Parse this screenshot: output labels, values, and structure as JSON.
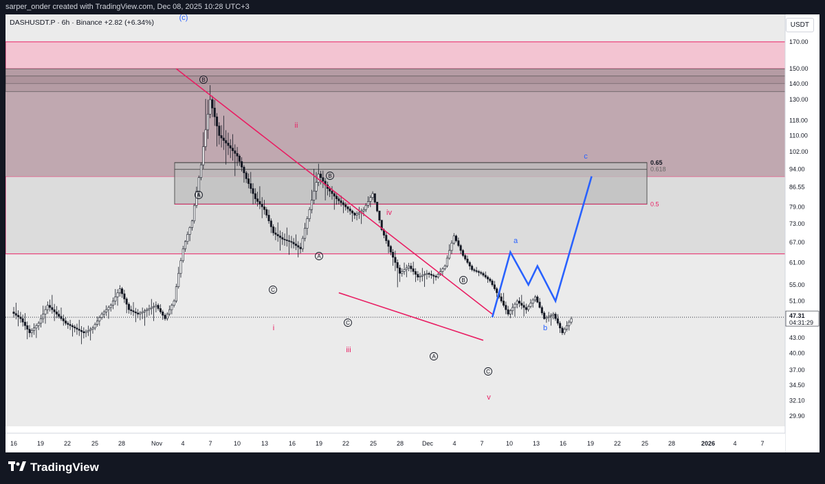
{
  "header": {
    "text": "sarper_onder created with TradingView.com, Dec 08, 2025 10:28 UTC+3"
  },
  "legend": {
    "symbol": "DASHUSDT.P",
    "interval": "6h",
    "exchange": "Binance",
    "change": "+2.82 (+6.34%)"
  },
  "unit": "USDT",
  "footer": {
    "brand": "TradingView",
    "logo": "tv-logo-icon"
  },
  "colors": {
    "bg": "#131722",
    "panel": "#ffffff",
    "candle": "#131722",
    "pink": "#e91e63",
    "blue": "#2962ff",
    "zone_pink": "#f3c4d2",
    "zone_dark": "#a08088"
  },
  "chart_data": {
    "type": "candlestick",
    "symbol": "DASHUSDT.P",
    "y_scale": "log",
    "ylim": [
      28.5,
      180
    ],
    "y_ticks": [
      "170.00",
      "150.00",
      "140.00",
      "130.00",
      "118.00",
      "110.00",
      "102.00",
      "94.00",
      "86.55",
      "79.00",
      "73.00",
      "67.00",
      "61.00",
      "55.00",
      "51.00",
      "47.31",
      "43.00",
      "40.00",
      "37.00",
      "34.50",
      "32.10",
      "29.90"
    ],
    "x_ticks": [
      "16",
      "19",
      "22",
      "25",
      "28",
      "Nov",
      "4",
      "7",
      "10",
      "13",
      "16",
      "19",
      "22",
      "25",
      "28",
      "Dec",
      "4",
      "7",
      "10",
      "13",
      "16",
      "19",
      "22",
      "25",
      "28",
      "2026",
      "4",
      "7"
    ],
    "last_price": "47.31",
    "countdown": "04:31:29",
    "candles_daily_ohlc": [
      [
        48.5,
        51,
        45,
        47
      ],
      [
        47,
        49,
        42,
        44
      ],
      [
        44,
        47,
        42,
        46
      ],
      [
        46,
        52,
        44,
        50
      ],
      [
        50,
        53,
        46,
        48
      ],
      [
        48,
        50,
        45,
        46
      ],
      [
        46,
        47,
        43,
        45
      ],
      [
        45,
        47,
        41.5,
        44
      ],
      [
        44,
        46,
        42,
        45
      ],
      [
        45,
        49,
        44,
        48
      ],
      [
        48,
        51,
        46,
        50
      ],
      [
        50,
        56,
        48,
        54
      ],
      [
        54,
        55,
        47,
        49
      ],
      [
        49,
        51,
        46,
        48
      ],
      [
        48,
        50,
        45,
        49
      ],
      [
        49,
        52,
        46,
        50
      ],
      [
        50,
        51,
        46,
        47
      ],
      [
        47,
        52,
        46,
        51
      ],
      [
        51,
        67,
        50,
        65
      ],
      [
        65,
        75,
        63,
        74
      ],
      [
        74,
        98,
        72,
        96
      ],
      [
        96,
        150,
        92,
        130
      ],
      [
        130,
        135,
        100,
        110
      ],
      [
        110,
        122,
        95,
        105
      ],
      [
        105,
        112,
        90,
        100
      ],
      [
        100,
        102,
        86,
        90
      ],
      [
        90,
        95,
        78,
        82
      ],
      [
        82,
        88,
        74,
        78
      ],
      [
        78,
        80,
        68,
        70
      ],
      [
        70,
        74,
        64,
        68
      ],
      [
        68,
        72,
        63,
        67
      ],
      [
        67,
        70,
        62,
        65
      ],
      [
        65,
        80,
        63,
        78
      ],
      [
        78,
        102,
        75,
        92
      ],
      [
        92,
        95,
        80,
        86
      ],
      [
        86,
        88,
        77,
        82
      ],
      [
        82,
        84,
        76,
        79
      ],
      [
        79,
        80,
        73,
        76
      ],
      [
        76,
        80,
        72,
        78
      ],
      [
        78,
        86,
        76,
        84
      ],
      [
        84,
        84,
        70,
        71
      ],
      [
        71,
        72,
        62,
        64
      ],
      [
        64,
        66,
        53,
        58
      ],
      [
        58,
        62,
        56,
        60
      ],
      [
        60,
        62,
        55,
        57
      ],
      [
        57,
        60,
        54,
        58
      ],
      [
        58,
        59,
        55,
        57
      ],
      [
        57,
        61,
        56,
        60
      ],
      [
        60,
        71,
        59,
        69
      ],
      [
        69,
        70,
        62,
        63
      ],
      [
        63,
        64,
        58,
        59
      ],
      [
        59,
        60,
        57,
        58
      ],
      [
        58,
        59,
        55,
        56
      ],
      [
        56,
        57,
        51,
        52
      ],
      [
        52,
        54,
        47,
        48
      ],
      [
        48,
        52,
        46,
        51
      ],
      [
        51,
        53,
        47,
        49
      ],
      [
        49,
        53,
        48,
        52
      ],
      [
        52,
        53,
        46.5,
        47
      ],
      [
        47,
        49,
        45,
        48
      ],
      [
        48,
        49,
        43,
        44
      ],
      [
        44,
        48,
        43,
        47
      ]
    ],
    "lines": [
      {
        "name": "upper trendline",
        "color": "#e91e63",
        "points": [
          [
            "Nov 3",
            150
          ],
          [
            "Dec 8",
            48
          ]
        ]
      },
      {
        "name": "lower trendline",
        "color": "#e91e63",
        "points": [
          [
            "Nov 21",
            53
          ],
          [
            "Dec 7",
            42.5
          ]
        ]
      },
      {
        "name": "projection",
        "color": "#2962ff",
        "points": [
          [
            "Dec 8",
            47.3
          ],
          [
            "Dec 10",
            64
          ],
          [
            "Dec 12",
            55
          ],
          [
            "Dec 13",
            60
          ],
          [
            "Dec 15",
            51
          ],
          [
            "Dec 19",
            91
          ]
        ]
      }
    ],
    "levels": [
      {
        "label": "0.65",
        "price": 97
      },
      {
        "label": "0.618",
        "price": 94
      },
      {
        "label": "0.5",
        "price": 80
      }
    ],
    "zones": [
      {
        "name": "pink zone",
        "from": 150,
        "to": 170
      },
      {
        "name": "dark zone",
        "from": 91,
        "to": 150
      },
      {
        "name": "grey zone",
        "from": 80,
        "to": 97
      },
      {
        "name": "light zone",
        "from": 63.5,
        "to": 91
      }
    ],
    "wave_labels": {
      "pink": [
        "i",
        "ii",
        "iii",
        "iv",
        "v"
      ],
      "blue": [
        "a",
        "b",
        "c",
        "(c)"
      ],
      "circled": [
        "B",
        "A",
        "B",
        "C",
        "A",
        "C",
        "B",
        "A",
        "C"
      ]
    }
  }
}
